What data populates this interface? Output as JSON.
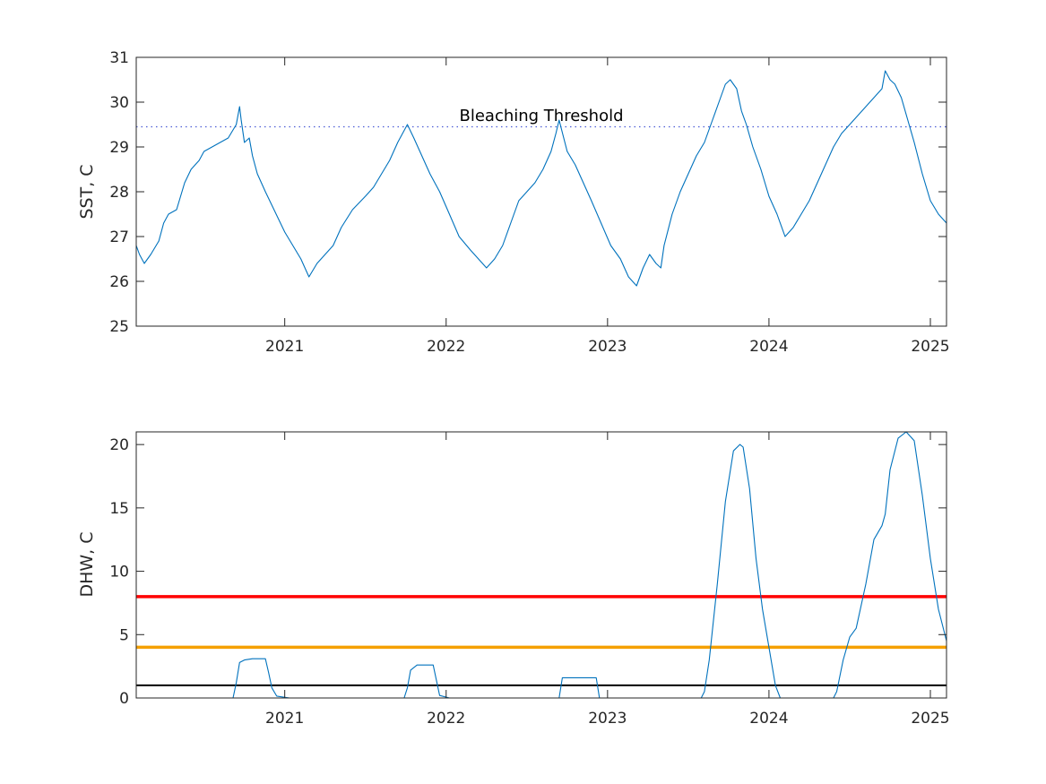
{
  "chart_data": [
    {
      "type": "line",
      "title": "",
      "xlabel": "",
      "ylabel": "SST, C",
      "xlim": [
        2020.08,
        2025.1
      ],
      "ylim": [
        25,
        31
      ],
      "xticks": [
        2021,
        2022,
        2023,
        2024,
        2025
      ],
      "xtick_labels": [
        "2021",
        "2022",
        "2023",
        "2024",
        "2025"
      ],
      "yticks": [
        25,
        26,
        27,
        28,
        29,
        30,
        31
      ],
      "ytick_labels": [
        "25",
        "26",
        "27",
        "28",
        "29",
        "30",
        "31"
      ],
      "grid": false,
      "series": [
        {
          "color": "#0072bd",
          "x": [
            2020.08,
            2020.1,
            2020.13,
            2020.17,
            2020.22,
            2020.25,
            2020.28,
            2020.33,
            2020.38,
            2020.42,
            2020.47,
            2020.5,
            2020.55,
            2020.6,
            2020.65,
            2020.7,
            2020.72,
            2020.73,
            2020.75,
            2020.78,
            2020.8,
            2020.83,
            2020.88,
            2020.92,
            2020.96,
            2021.0,
            2021.05,
            2021.1,
            2021.15,
            2021.2,
            2021.25,
            2021.3,
            2021.35,
            2021.42,
            2021.5,
            2021.55,
            2021.6,
            2021.65,
            2021.7,
            2021.73,
            2021.76,
            2021.8,
            2021.85,
            2021.9,
            2021.96,
            2022.02,
            2022.08,
            2022.15,
            2022.2,
            2022.25,
            2022.3,
            2022.35,
            2022.4,
            2022.45,
            2022.5,
            2022.55,
            2022.6,
            2022.65,
            2022.68,
            2022.7,
            2022.75,
            2022.8,
            2022.85,
            2022.9,
            2022.96,
            2023.02,
            2023.08,
            2023.13,
            2023.18,
            2023.22,
            2023.26,
            2023.3,
            2023.33,
            2023.35,
            2023.4,
            2023.45,
            2023.5,
            2023.55,
            2023.6,
            2023.65,
            2023.7,
            2023.73,
            2023.76,
            2023.8,
            2023.83,
            2023.86,
            2023.9,
            2023.95,
            2024.0,
            2024.05,
            2024.1,
            2024.15,
            2024.2,
            2024.25,
            2024.3,
            2024.35,
            2024.4,
            2024.45,
            2024.5,
            2024.55,
            2024.6,
            2024.65,
            2024.7,
            2024.72,
            2024.75,
            2024.78,
            2024.82,
            2024.86,
            2024.9,
            2024.95,
            2025.0,
            2025.05,
            2025.1
          ],
          "y": [
            26.8,
            26.6,
            26.4,
            26.6,
            26.9,
            27.3,
            27.5,
            27.6,
            28.2,
            28.5,
            28.7,
            28.9,
            29.0,
            29.1,
            29.2,
            29.5,
            29.9,
            29.6,
            29.1,
            29.2,
            28.8,
            28.4,
            28.0,
            27.7,
            27.4,
            27.1,
            26.8,
            26.5,
            26.1,
            26.4,
            26.6,
            26.8,
            27.2,
            27.6,
            27.9,
            28.1,
            28.4,
            28.7,
            29.1,
            29.3,
            29.5,
            29.2,
            28.8,
            28.4,
            28.0,
            27.5,
            27.0,
            26.7,
            26.5,
            26.3,
            26.5,
            26.8,
            27.3,
            27.8,
            28.0,
            28.2,
            28.5,
            28.9,
            29.3,
            29.6,
            28.9,
            28.6,
            28.2,
            27.8,
            27.3,
            26.8,
            26.5,
            26.1,
            25.9,
            26.3,
            26.6,
            26.4,
            26.3,
            26.8,
            27.5,
            28.0,
            28.4,
            28.8,
            29.1,
            29.6,
            30.1,
            30.4,
            30.5,
            30.3,
            29.8,
            29.5,
            29.0,
            28.5,
            27.9,
            27.5,
            27.0,
            27.2,
            27.5,
            27.8,
            28.2,
            28.6,
            29.0,
            29.3,
            29.5,
            29.7,
            29.9,
            30.1,
            30.3,
            30.7,
            30.5,
            30.4,
            30.1,
            29.6,
            29.1,
            28.4,
            27.8,
            27.5,
            27.3
          ]
        }
      ],
      "reference_lines": [
        {
          "y": 29.45,
          "style": "dotted",
          "color": "#4a5bd6",
          "label": "Bleaching Threshold"
        }
      ]
    },
    {
      "type": "line",
      "title": "",
      "xlabel": "",
      "ylabel": "DHW, C",
      "xlim": [
        2020.08,
        2025.1
      ],
      "ylim": [
        0,
        21
      ],
      "xticks": [
        2021,
        2022,
        2023,
        2024,
        2025
      ],
      "xtick_labels": [
        "2021",
        "2022",
        "2023",
        "2024",
        "2025"
      ],
      "yticks": [
        0,
        5,
        10,
        15,
        20
      ],
      "ytick_labels": [
        "0",
        "5",
        "10",
        "15",
        "20"
      ],
      "grid": false,
      "series": [
        {
          "color": "#0072bd",
          "x": [
            2020.08,
            2020.68,
            2020.7,
            2020.72,
            2020.75,
            2020.8,
            2020.88,
            2020.9,
            2020.92,
            2020.95,
            2021.03,
            2021.74,
            2021.76,
            2021.78,
            2021.82,
            2021.92,
            2021.94,
            2021.96,
            2022.02,
            2022.7,
            2022.72,
            2022.93,
            2022.95,
            2023.58,
            2023.6,
            2023.63,
            2023.68,
            2023.73,
            2023.78,
            2023.82,
            2023.84,
            2023.88,
            2023.92,
            2023.96,
            2024.0,
            2024.04,
            2024.07,
            2024.4,
            2024.42,
            2024.46,
            2024.5,
            2024.54,
            2024.6,
            2024.65,
            2024.7,
            2024.72,
            2024.75,
            2024.8,
            2024.85,
            2024.9,
            2024.95,
            2025.0,
            2025.05,
            2025.1
          ],
          "y": [
            0,
            0,
            1.2,
            2.8,
            3.0,
            3.1,
            3.1,
            2.0,
            0.8,
            0.15,
            0,
            0,
            0.8,
            2.2,
            2.6,
            2.6,
            1.4,
            0.2,
            0,
            0,
            1.6,
            1.6,
            0,
            0,
            0.5,
            3.0,
            9.0,
            15.5,
            19.5,
            20.0,
            19.8,
            16.5,
            11.0,
            7.0,
            4.0,
            1.0,
            0,
            0,
            0.5,
            3.0,
            4.8,
            5.5,
            9.0,
            12.5,
            13.6,
            14.5,
            18.0,
            20.5,
            21.0,
            20.3,
            16.0,
            11.0,
            7.0,
            4.5
          ]
        }
      ],
      "reference_lines": [
        {
          "y": 8,
          "style": "solid",
          "color": "#ff0000"
        },
        {
          "y": 4,
          "style": "solid",
          "color": "#f5a000"
        },
        {
          "y": 1,
          "style": "solid",
          "color": "#000000"
        }
      ]
    }
  ]
}
